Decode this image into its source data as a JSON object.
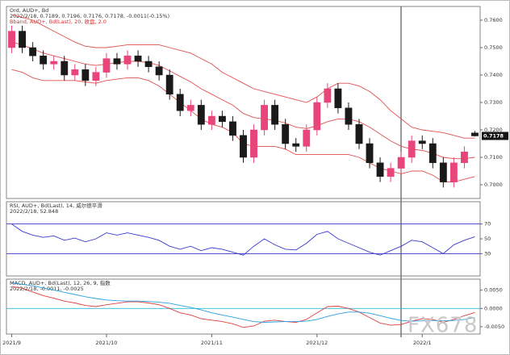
{
  "chart_data": [
    {
      "type": "candlestick",
      "title": "Ord, AUD+, Bd",
      "subtitle": "2022/2/18, 0.7189, 0.7196, 0.7176, 0.7178, -0.0011(-0.15%)",
      "note": "Bband, AUD+, Bd(Last), 20, 收盘, 2.0",
      "categories": [
        "2021/9",
        null,
        null,
        null,
        null,
        null,
        null,
        null,
        null,
        "2021/10",
        null,
        null,
        null,
        null,
        null,
        null,
        null,
        null,
        null,
        "2021/11",
        null,
        null,
        null,
        null,
        null,
        null,
        null,
        null,
        null,
        "2021/12",
        null,
        null,
        null,
        null,
        null,
        null,
        null,
        null,
        null,
        "2022/1",
        null,
        null,
        null,
        null,
        null
      ],
      "open": [
        0.75,
        0.756,
        0.75,
        0.747,
        0.744,
        0.745,
        0.74,
        0.742,
        0.738,
        0.741,
        0.746,
        0.744,
        0.747,
        0.745,
        0.743,
        0.74,
        0.733,
        0.727,
        0.729,
        0.722,
        0.725,
        0.723,
        0.718,
        0.71,
        0.72,
        0.729,
        0.722,
        0.715,
        0.714,
        0.72,
        0.73,
        0.735,
        0.728,
        0.722,
        0.715,
        0.708,
        0.703,
        0.706,
        0.71,
        0.716,
        0.715,
        0.708,
        0.701,
        0.708,
        0.7189
      ],
      "high": [
        0.758,
        0.758,
        0.752,
        0.749,
        0.747,
        0.747,
        0.744,
        0.744,
        0.743,
        0.748,
        0.748,
        0.749,
        0.749,
        0.747,
        0.745,
        0.742,
        0.735,
        0.731,
        0.731,
        0.727,
        0.727,
        0.725,
        0.72,
        0.722,
        0.731,
        0.731,
        0.724,
        0.717,
        0.722,
        0.732,
        0.737,
        0.737,
        0.73,
        0.724,
        0.717,
        0.71,
        0.708,
        0.712,
        0.718,
        0.718,
        0.717,
        0.71,
        0.71,
        0.714,
        0.7196
      ],
      "low": [
        0.748,
        0.748,
        0.745,
        0.742,
        0.742,
        0.738,
        0.738,
        0.736,
        0.736,
        0.739,
        0.742,
        0.742,
        0.743,
        0.741,
        0.738,
        0.731,
        0.725,
        0.725,
        0.72,
        0.72,
        0.721,
        0.716,
        0.708,
        0.708,
        0.718,
        0.72,
        0.713,
        0.712,
        0.712,
        0.718,
        0.728,
        0.726,
        0.72,
        0.713,
        0.706,
        0.701,
        0.701,
        0.704,
        0.708,
        0.713,
        0.706,
        0.699,
        0.699,
        0.706,
        0.7176
      ],
      "close": [
        0.756,
        0.75,
        0.747,
        0.744,
        0.745,
        0.74,
        0.742,
        0.738,
        0.741,
        0.746,
        0.744,
        0.747,
        0.745,
        0.743,
        0.74,
        0.733,
        0.727,
        0.729,
        0.722,
        0.725,
        0.723,
        0.718,
        0.71,
        0.72,
        0.729,
        0.722,
        0.715,
        0.714,
        0.72,
        0.73,
        0.735,
        0.728,
        0.722,
        0.715,
        0.708,
        0.703,
        0.706,
        0.71,
        0.716,
        0.715,
        0.708,
        0.701,
        0.708,
        0.712,
        0.7178
      ],
      "up_color": "#e8457a",
      "down_color": "#1a1a1a",
      "overlays": [
        {
          "color": "#e05050",
          "values": [
            0.762,
            0.761,
            0.76,
            0.758,
            0.756,
            0.754,
            0.752,
            0.7505,
            0.75,
            0.75,
            0.7505,
            0.751,
            0.751,
            0.751,
            0.751,
            0.75,
            0.749,
            0.748,
            0.746,
            0.744,
            0.741,
            0.739,
            0.737,
            0.735,
            0.734,
            0.733,
            0.732,
            0.731,
            0.73,
            0.732,
            0.735,
            0.737,
            0.737,
            0.736,
            0.734,
            0.731,
            0.727,
            0.724,
            0.721,
            0.72,
            0.7195,
            0.719,
            0.718,
            0.717,
            0.717
          ]
        },
        {
          "color": "#e05050",
          "values": [
            0.752,
            0.751,
            0.7495,
            0.748,
            0.747,
            0.746,
            0.745,
            0.744,
            0.7435,
            0.744,
            0.7445,
            0.745,
            0.745,
            0.7445,
            0.7435,
            0.7415,
            0.7395,
            0.7375,
            0.735,
            0.733,
            0.731,
            0.729,
            0.726,
            0.7245,
            0.724,
            0.7235,
            0.7225,
            0.721,
            0.7205,
            0.7215,
            0.723,
            0.724,
            0.724,
            0.723,
            0.721,
            0.7185,
            0.716,
            0.714,
            0.713,
            0.7125,
            0.7115,
            0.71,
            0.7095,
            0.7095,
            0.71
          ]
        },
        {
          "color": "#e05050",
          "values": [
            0.742,
            0.741,
            0.739,
            0.738,
            0.738,
            0.738,
            0.738,
            0.7375,
            0.737,
            0.738,
            0.7385,
            0.739,
            0.739,
            0.738,
            0.736,
            0.733,
            0.73,
            0.727,
            0.724,
            0.722,
            0.721,
            0.719,
            0.715,
            0.714,
            0.714,
            0.714,
            0.713,
            0.711,
            0.711,
            0.711,
            0.711,
            0.711,
            0.711,
            0.71,
            0.708,
            0.706,
            0.705,
            0.704,
            0.705,
            0.705,
            0.7035,
            0.701,
            0.701,
            0.702,
            0.703
          ]
        }
      ],
      "ylim": [
        0.695,
        0.765
      ],
      "yticks": [
        {
          "value": 0.7,
          "label": "0.7000"
        },
        {
          "value": 0.71,
          "label": "0.7100"
        },
        {
          "value": 0.72,
          "label": "0.7200"
        },
        {
          "value": 0.73,
          "label": "0.7300"
        },
        {
          "value": 0.74,
          "label": "0.7400"
        },
        {
          "value": 0.75,
          "label": "0.7500"
        },
        {
          "value": 0.76,
          "label": "0.7600"
        }
      ]
    },
    {
      "type": "line",
      "title": "RSI, AUD+, Bd(Last), 14, 威尔德平滑",
      "subtitle": "2022/2/18, 52.848",
      "series": [
        {
          "color": "#3a3acc",
          "values": [
            70,
            60,
            55,
            52,
            54,
            48,
            51,
            46,
            50,
            58,
            55,
            58,
            55,
            52,
            48,
            40,
            36,
            40,
            34,
            38,
            36,
            32,
            28,
            40,
            50,
            42,
            36,
            35,
            44,
            56,
            60,
            50,
            44,
            38,
            32,
            28,
            34,
            40,
            48,
            46,
            38,
            30,
            42,
            48,
            52.848
          ]
        }
      ],
      "levels": [
        30,
        70
      ],
      "level_color": "#3a3acc",
      "ylim": [
        0,
        100
      ],
      "yticks": [
        30,
        50,
        70
      ]
    },
    {
      "type": "line",
      "title": "MACD, AUD+, Bd(Last), 12, 26, 9, 指数",
      "subtitle": "2022/2/18, -0.0011, -0.0025",
      "series": [
        {
          "color": "#e04040",
          "values": [
            0.006,
            0.0055,
            0.0045,
            0.0035,
            0.0028,
            0.002,
            0.0015,
            0.0008,
            0.0005,
            0.001,
            0.0014,
            0.0018,
            0.0018,
            0.0015,
            0.001,
            0.0,
            -0.0012,
            -0.0018,
            -0.0028,
            -0.0032,
            -0.0036,
            -0.0042,
            -0.0052,
            -0.0048,
            -0.0035,
            -0.0032,
            -0.0036,
            -0.0038,
            -0.003,
            -0.0012,
            0.0005,
            0.0006,
            0.0,
            -0.001,
            -0.0025,
            -0.004,
            -0.0046,
            -0.0044,
            -0.0035,
            -0.0028,
            -0.003,
            -0.0038,
            -0.003,
            -0.002,
            -0.0011
          ]
        },
        {
          "color": "#2aa0e0",
          "values": [
            0.007,
            0.0066,
            0.0062,
            0.0056,
            0.005,
            0.0044,
            0.0038,
            0.0032,
            0.0027,
            0.0023,
            0.0021,
            0.002,
            0.002,
            0.0019,
            0.0017,
            0.0014,
            0.0008,
            0.0003,
            -0.0004,
            -0.0012,
            -0.0018,
            -0.0024,
            -0.003,
            -0.0036,
            -0.0038,
            -0.0037,
            -0.0036,
            -0.0036,
            -0.0035,
            -0.003,
            -0.0022,
            -0.0015,
            -0.001,
            -0.001,
            -0.0013,
            -0.002,
            -0.0027,
            -0.0033,
            -0.0035,
            -0.0034,
            -0.0033,
            -0.0034,
            -0.0033,
            -0.003,
            -0.0025
          ]
        }
      ],
      "levels": [
        0
      ],
      "level_color": "#2ab8d8",
      "ylim": [
        -0.007,
        0.008
      ],
      "yticks": [
        {
          "value": -0.005,
          "label": "-0.0050"
        },
        {
          "value": 0,
          "label": "0.0000"
        },
        {
          "value": 0.005,
          "label": "0.0050"
        }
      ]
    }
  ],
  "watermark": "FX678"
}
